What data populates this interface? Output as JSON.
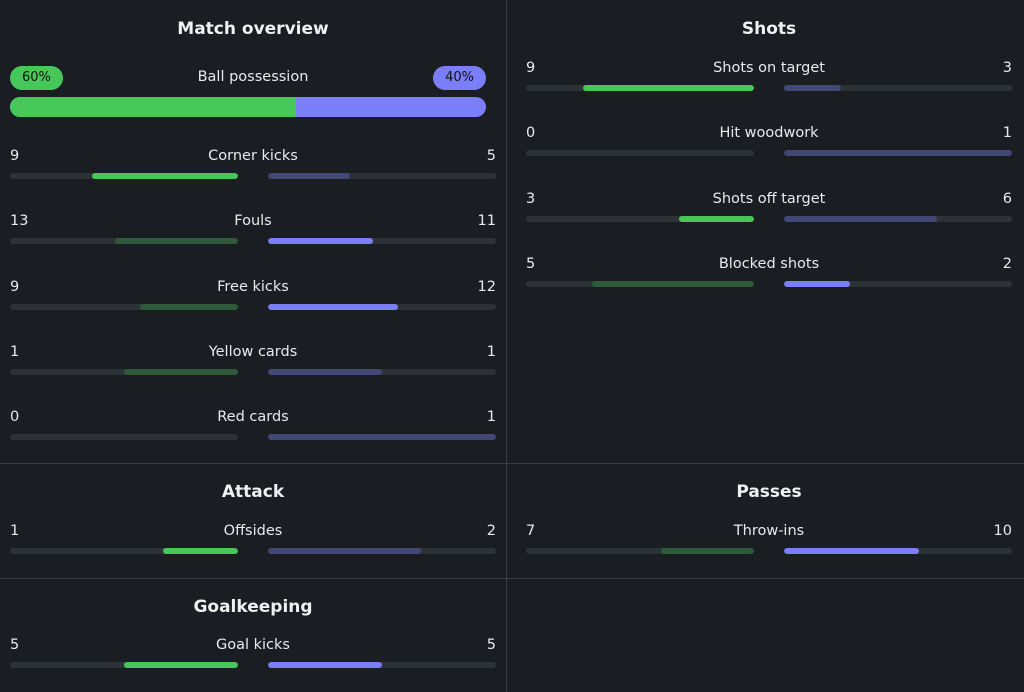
{
  "colors": {
    "home_strong": "#47c75a",
    "home_weak": "#2f5a3a",
    "away_strong": "#7b7ff7",
    "away_weak": "#424775",
    "track": "#2d3237"
  },
  "match_overview": {
    "title": "Match overview",
    "possession": {
      "label": "Ball possession",
      "home": "60%",
      "away": "40%",
      "home_fraction": 0.6
    },
    "stats": [
      {
        "label": "Corner kicks",
        "home": "9",
        "away": "5",
        "home_frac": 0.64,
        "away_frac": 0.36,
        "home_strong": true,
        "away_strong": false
      },
      {
        "label": "Fouls",
        "home": "13",
        "away": "11",
        "home_frac": 0.54,
        "away_frac": 0.46,
        "home_strong": false,
        "away_strong": true
      },
      {
        "label": "Free kicks",
        "home": "9",
        "away": "12",
        "home_frac": 0.43,
        "away_frac": 0.57,
        "home_strong": false,
        "away_strong": true
      },
      {
        "label": "Yellow cards",
        "home": "1",
        "away": "1",
        "home_frac": 0.5,
        "away_frac": 0.5,
        "home_strong": false,
        "away_strong": false
      },
      {
        "label": "Red cards",
        "home": "0",
        "away": "1",
        "home_frac": 0.0,
        "away_frac": 1.0,
        "home_strong": false,
        "away_strong": false
      }
    ]
  },
  "shots": {
    "title": "Shots",
    "stats": [
      {
        "label": "Shots on target",
        "home": "9",
        "away": "3",
        "home_frac": 0.75,
        "away_frac": 0.25,
        "home_strong": true,
        "away_strong": false
      },
      {
        "label": "Hit woodwork",
        "home": "0",
        "away": "1",
        "home_frac": 0.0,
        "away_frac": 1.0,
        "home_strong": false,
        "away_strong": false
      },
      {
        "label": "Shots off target",
        "home": "3",
        "away": "6",
        "home_frac": 0.33,
        "away_frac": 0.67,
        "home_strong": true,
        "away_strong": false
      },
      {
        "label": "Blocked shots",
        "home": "5",
        "away": "2",
        "home_frac": 0.71,
        "away_frac": 0.29,
        "home_strong": false,
        "away_strong": true
      }
    ]
  },
  "attack": {
    "title": "Attack",
    "stats": [
      {
        "label": "Offsides",
        "home": "1",
        "away": "2",
        "home_frac": 0.33,
        "away_frac": 0.67,
        "home_strong": true,
        "away_strong": false
      }
    ]
  },
  "passes": {
    "title": "Passes",
    "stats": [
      {
        "label": "Throw-ins",
        "home": "7",
        "away": "10",
        "home_frac": 0.41,
        "away_frac": 0.59,
        "home_strong": false,
        "away_strong": true
      }
    ]
  },
  "goalkeeping": {
    "title": "Goalkeeping",
    "stats": [
      {
        "label": "Goal kicks",
        "home": "5",
        "away": "5",
        "home_frac": 0.5,
        "away_frac": 0.5,
        "home_strong": true,
        "away_strong": true
      }
    ]
  }
}
